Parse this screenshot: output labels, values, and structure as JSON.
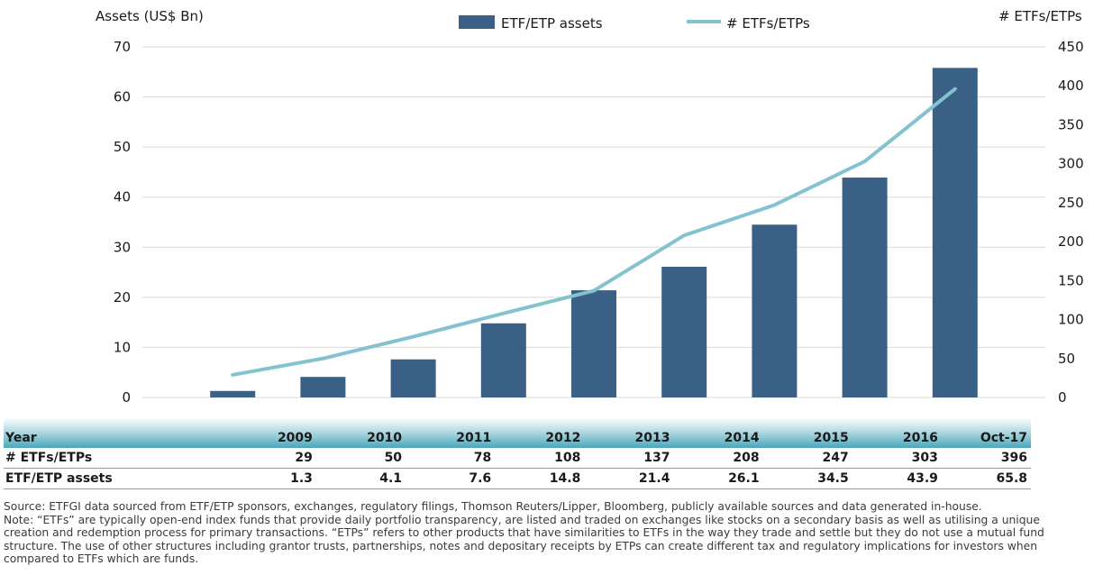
{
  "chart_data": {
    "type": "bar",
    "categories": [
      "2009",
      "2010",
      "2011",
      "2012",
      "2013",
      "2014",
      "2015",
      "2016",
      "Oct-17"
    ],
    "series": [
      {
        "name": "ETF/ETP assets",
        "type": "bar",
        "axis": "left",
        "color": "#3a6185",
        "values": [
          1.3,
          4.1,
          7.6,
          14.8,
          21.4,
          26.1,
          34.5,
          43.9,
          65.8
        ]
      },
      {
        "name": "# ETFs/ETPs",
        "type": "line",
        "axis": "right",
        "color": "#84c2d0",
        "values": [
          29,
          50,
          78,
          108,
          137,
          208,
          247,
          303,
          396
        ]
      }
    ],
    "ylabel_left": "Assets (US$ Bn)",
    "ylabel_right": "# ETFs/ETPs",
    "ylim_left": [
      0,
      70
    ],
    "ylim_right": [
      0,
      450
    ],
    "yticks_left": [
      "0",
      "10",
      "20",
      "30",
      "40",
      "50",
      "60",
      "70"
    ],
    "yticks_right": [
      "0",
      "50",
      "100",
      "150",
      "200",
      "250",
      "300",
      "350",
      "400",
      "450"
    ],
    "grid": true,
    "legend_position": "top-center"
  },
  "table": {
    "header_label": "Year",
    "years": [
      "2009",
      "2010",
      "2011",
      "2012",
      "2013",
      "2014",
      "2015",
      "2016",
      "Oct-17"
    ],
    "rows": [
      {
        "label": "# ETFs/ETPs",
        "values": [
          "29",
          "50",
          "78",
          "108",
          "137",
          "208",
          "247",
          "303",
          "396"
        ]
      },
      {
        "label": "ETF/ETP assets",
        "values": [
          "1.3",
          "4.1",
          "7.6",
          "14.8",
          "21.4",
          "26.1",
          "34.5",
          "43.9",
          "65.8"
        ]
      }
    ]
  },
  "notes": {
    "source": "Source: ETFGI data sourced from ETF/ETP sponsors, exchanges, regulatory filings, Thomson Reuters/Lipper, Bloomberg, publicly available sources and data generated in-house.",
    "note": "Note: “ETFs” are typically open-end index funds that provide daily portfolio transparency, are listed and traded on exchanges like stocks on a secondary basis as well as utilising a unique creation and redemption process for primary transactions. “ETPs” refers to other products that have similarities to ETFs in the way they trade and settle but they do not use a mutual fund structure. The use of other structures including grantor trusts, partnerships, notes and depositary receipts by ETPs can create different tax and regulatory implications for investors when compared to ETFs which are funds."
  }
}
